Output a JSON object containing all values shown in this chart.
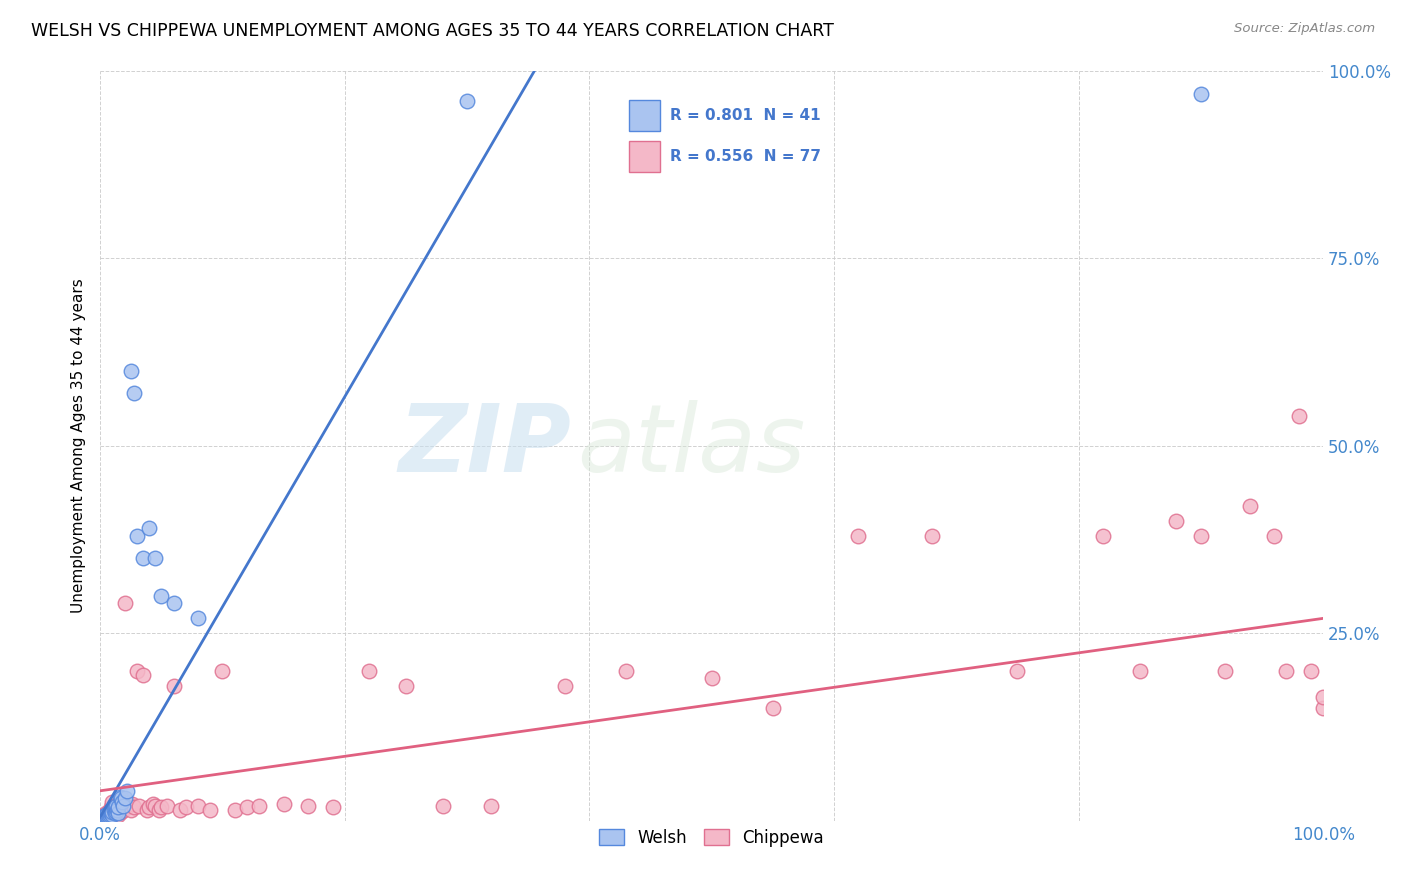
{
  "title": "WELSH VS CHIPPEWA UNEMPLOYMENT AMONG AGES 35 TO 44 YEARS CORRELATION CHART",
  "source": "Source: ZipAtlas.com",
  "ylabel": "Unemployment Among Ages 35 to 44 years",
  "xlim": [
    0.0,
    1.0
  ],
  "ylim": [
    0.0,
    1.0
  ],
  "xtick_labels": [
    "0.0%",
    "",
    "",
    "",
    "",
    "100.0%"
  ],
  "ytick_labels": [
    "",
    "25.0%",
    "50.0%",
    "75.0%",
    "100.0%"
  ],
  "welsh_color": "#aac4f0",
  "chippewa_color": "#f4b8c8",
  "welsh_edge_color": "#5588dd",
  "chippewa_edge_color": "#e07090",
  "welsh_line_color": "#4477cc",
  "chippewa_line_color": "#e06080",
  "tick_color": "#4488cc",
  "welsh_R": 0.801,
  "welsh_N": 41,
  "chippewa_R": 0.556,
  "chippewa_N": 77,
  "watermark_zip": "ZIP",
  "watermark_atlas": "atlas",
  "welsh_x": [
    0.002,
    0.003,
    0.004,
    0.004,
    0.005,
    0.005,
    0.006,
    0.006,
    0.007,
    0.007,
    0.008,
    0.008,
    0.009,
    0.009,
    0.01,
    0.01,
    0.011,
    0.012,
    0.012,
    0.013,
    0.013,
    0.014,
    0.015,
    0.015,
    0.016,
    0.017,
    0.018,
    0.019,
    0.02,
    0.022,
    0.025,
    0.028,
    0.03,
    0.035,
    0.04,
    0.045,
    0.05,
    0.06,
    0.08,
    0.3,
    0.9
  ],
  "welsh_y": [
    0.005,
    0.006,
    0.004,
    0.007,
    0.005,
    0.008,
    0.006,
    0.009,
    0.007,
    0.01,
    0.008,
    0.012,
    0.01,
    0.014,
    0.008,
    0.012,
    0.015,
    0.01,
    0.018,
    0.012,
    0.02,
    0.015,
    0.01,
    0.018,
    0.032,
    0.03,
    0.025,
    0.02,
    0.03,
    0.04,
    0.6,
    0.57,
    0.38,
    0.35,
    0.39,
    0.35,
    0.3,
    0.29,
    0.27,
    0.96,
    0.97
  ],
  "chippewa_x": [
    0.002,
    0.003,
    0.004,
    0.005,
    0.005,
    0.006,
    0.007,
    0.007,
    0.008,
    0.008,
    0.009,
    0.009,
    0.01,
    0.01,
    0.011,
    0.012,
    0.012,
    0.013,
    0.014,
    0.015,
    0.015,
    0.016,
    0.017,
    0.018,
    0.019,
    0.02,
    0.02,
    0.022,
    0.024,
    0.025,
    0.026,
    0.028,
    0.03,
    0.032,
    0.035,
    0.038,
    0.04,
    0.043,
    0.045,
    0.048,
    0.05,
    0.055,
    0.06,
    0.065,
    0.07,
    0.08,
    0.09,
    0.1,
    0.11,
    0.12,
    0.13,
    0.15,
    0.17,
    0.19,
    0.22,
    0.25,
    0.28,
    0.32,
    0.38,
    0.43,
    0.5,
    0.55,
    0.62,
    0.68,
    0.75,
    0.82,
    0.85,
    0.88,
    0.9,
    0.92,
    0.94,
    0.96,
    0.97,
    0.98,
    0.99,
    1.0,
    1.0
  ],
  "chippewa_y": [
    0.005,
    0.008,
    0.006,
    0.005,
    0.01,
    0.008,
    0.006,
    0.012,
    0.008,
    0.015,
    0.01,
    0.018,
    0.008,
    0.025,
    0.012,
    0.01,
    0.02,
    0.015,
    0.018,
    0.008,
    0.022,
    0.025,
    0.012,
    0.03,
    0.015,
    0.022,
    0.29,
    0.025,
    0.02,
    0.015,
    0.022,
    0.018,
    0.2,
    0.02,
    0.195,
    0.015,
    0.018,
    0.022,
    0.02,
    0.015,
    0.018,
    0.02,
    0.18,
    0.015,
    0.018,
    0.02,
    0.015,
    0.2,
    0.015,
    0.018,
    0.02,
    0.022,
    0.02,
    0.018,
    0.2,
    0.18,
    0.02,
    0.02,
    0.18,
    0.2,
    0.19,
    0.15,
    0.38,
    0.38,
    0.2,
    0.38,
    0.2,
    0.4,
    0.38,
    0.2,
    0.42,
    0.38,
    0.2,
    0.54,
    0.2,
    0.15,
    0.165
  ],
  "welsh_line_x0": 0.0,
  "welsh_line_y0": 0.005,
  "welsh_line_x1": 0.355,
  "welsh_line_y1": 1.0,
  "chippewa_line_x0": 0.0,
  "chippewa_line_y0": 0.04,
  "chippewa_line_x1": 1.0,
  "chippewa_line_y1": 0.27
}
